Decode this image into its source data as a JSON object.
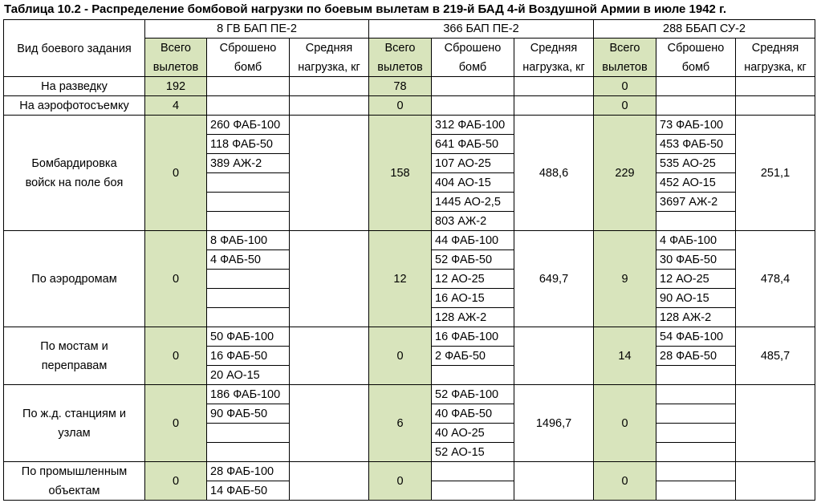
{
  "title": "Таблица 10.2 - Распределение бомбовой нагрузки по боевым вылетам в 219-й БАД 4-й Воздушной Армии в июле 1942 г.",
  "task_header": [
    "Вид боевого задания"
  ],
  "regiments": [
    {
      "name": "8 ГВ БАП ПЕ-2"
    },
    {
      "name": "366 БАП ПЕ-2"
    },
    {
      "name": "288 ББАП СУ-2"
    }
  ],
  "subheaders": {
    "total": [
      "Всего",
      "вылетов"
    ],
    "dropped": [
      "Сброшено",
      "бомб"
    ],
    "avg": [
      "Средняя",
      "нагрузка, кг"
    ]
  },
  "rows": [
    {
      "task": [
        "На разведку"
      ],
      "lines": 1,
      "regs": [
        {
          "total": "192",
          "bombs": [],
          "avg": ""
        },
        {
          "total": "78",
          "bombs": [],
          "avg": ""
        },
        {
          "total": "0",
          "bombs": [],
          "avg": ""
        }
      ]
    },
    {
      "task": [
        "На аэрофотосъемку"
      ],
      "lines": 1,
      "regs": [
        {
          "total": "4",
          "bombs": [],
          "avg": ""
        },
        {
          "total": "0",
          "bombs": [],
          "avg": ""
        },
        {
          "total": "0",
          "bombs": [],
          "avg": ""
        }
      ]
    },
    {
      "task": [
        "Бомбардировка",
        "войск на поле боя"
      ],
      "lines": 6,
      "regs": [
        {
          "total": "0",
          "bombs": [
            "260 ФАБ-100",
            "118 ФАБ-50",
            "389 АЖ-2"
          ],
          "avg": ""
        },
        {
          "total": "158",
          "bombs": [
            "312 ФАБ-100",
            "641 ФАБ-50",
            "107 АО-25",
            "404 АО-15",
            "1445 АО-2,5",
            "803 АЖ-2"
          ],
          "avg": "488,6"
        },
        {
          "total": "229",
          "bombs": [
            "73 ФАБ-100",
            "453 ФАБ-50",
            "535 АО-25",
            "452 АО-15",
            "3697 АЖ-2"
          ],
          "avg": "251,1"
        }
      ]
    },
    {
      "task": [
        "По аэродромам"
      ],
      "lines": 5,
      "regs": [
        {
          "total": "0",
          "bombs": [
            "8 ФАБ-100",
            "4 ФАБ-50"
          ],
          "avg": ""
        },
        {
          "total": "12",
          "bombs": [
            "44 ФАБ-100",
            "52 ФАБ-50",
            "12 АО-25",
            "16 АО-15",
            "128 АЖ-2"
          ],
          "avg": "649,7"
        },
        {
          "total": "9",
          "bombs": [
            "4 ФАБ-100",
            "30 ФАБ-50",
            "12 АО-25",
            "90 АО-15",
            "128 АЖ-2"
          ],
          "avg": "478,4"
        }
      ]
    },
    {
      "task": [
        "По мостам и",
        "переправам"
      ],
      "lines": 3,
      "regs": [
        {
          "total": "0",
          "bombs": [
            "50 ФАБ-100",
            "16 ФАБ-50",
            "20 АО-15"
          ],
          "avg": ""
        },
        {
          "total": "0",
          "bombs": [
            "16 ФАБ-100",
            "2 ФАБ-50"
          ],
          "avg": ""
        },
        {
          "total": "14",
          "bombs": [
            "54 ФАБ-100",
            "28 ФАБ-50"
          ],
          "avg": "485,7"
        }
      ]
    },
    {
      "task": [
        "По ж.д. станциям и",
        "узлам"
      ],
      "lines": 4,
      "regs": [
        {
          "total": "0",
          "bombs": [
            "186 ФАБ-100",
            "90 ФАБ-50"
          ],
          "avg": ""
        },
        {
          "total": "6",
          "bombs": [
            "52 ФАБ-100",
            "40 ФАБ-50",
            "40 АО-25",
            "52 АО-15"
          ],
          "avg": "1496,7"
        },
        {
          "total": "0",
          "bombs": [],
          "avg": ""
        }
      ]
    },
    {
      "task": [
        "По промышленным",
        "объектам"
      ],
      "lines": 2,
      "regs": [
        {
          "total": "0",
          "bombs": [
            "28 ФАБ-100",
            "14 ФАБ-50"
          ],
          "avg": ""
        },
        {
          "total": "0",
          "bombs": [],
          "avg": ""
        },
        {
          "total": "0",
          "bombs": [],
          "avg": ""
        }
      ]
    }
  ],
  "colors": {
    "highlight": "#d8e4bc",
    "grid": "#000000"
  }
}
